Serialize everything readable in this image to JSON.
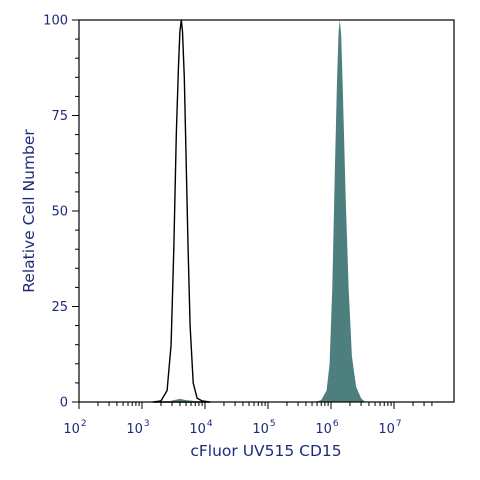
{
  "chart_data": {
    "type": "area",
    "title": "",
    "xlabel": "cFluor UV515 CD15",
    "ylabel": "Relative Cell Number",
    "x_scale": "log",
    "xlim": [
      100,
      50000000
    ],
    "ylim": [
      0,
      100
    ],
    "x_ticks": [
      {
        "base": "10",
        "exp": "2"
      },
      {
        "base": "10",
        "exp": "3"
      },
      {
        "base": "10",
        "exp": "4"
      },
      {
        "base": "10",
        "exp": "5"
      },
      {
        "base": "10",
        "exp": "6"
      },
      {
        "base": "10",
        "exp": "7"
      }
    ],
    "y_ticks": [
      "0",
      "25",
      "50",
      "75",
      "100"
    ],
    "grid": false,
    "series": [
      {
        "style": "outline",
        "color": "#000000",
        "points": [
          [
            1500,
            0
          ],
          [
            2000,
            0.3
          ],
          [
            2500,
            3
          ],
          [
            2900,
            15
          ],
          [
            3200,
            40
          ],
          [
            3500,
            70
          ],
          [
            3800,
            88
          ],
          [
            4000,
            97
          ],
          [
            4200,
            100
          ],
          [
            4400,
            97
          ],
          [
            4700,
            85
          ],
          [
            5000,
            65
          ],
          [
            5400,
            40
          ],
          [
            5800,
            20
          ],
          [
            6500,
            5
          ],
          [
            7500,
            1
          ],
          [
            9000,
            0.3
          ],
          [
            12000,
            0
          ]
        ]
      },
      {
        "style": "filled",
        "color": "#4e7f7f",
        "points": [
          [
            550000,
            0
          ],
          [
            700000,
            0.5
          ],
          [
            850000,
            3
          ],
          [
            950000,
            10
          ],
          [
            1050000,
            30
          ],
          [
            1150000,
            60
          ],
          [
            1250000,
            85
          ],
          [
            1320000,
            97
          ],
          [
            1380000,
            100
          ],
          [
            1450000,
            96
          ],
          [
            1550000,
            80
          ],
          [
            1700000,
            55
          ],
          [
            1900000,
            30
          ],
          [
            2150000,
            12
          ],
          [
            2500000,
            4
          ],
          [
            3000000,
            1
          ],
          [
            3500000,
            0
          ]
        ]
      },
      {
        "style": "filled-baseline",
        "color": "#4e7f7f",
        "points": [
          [
            2600,
            0
          ],
          [
            3000,
            0.4
          ],
          [
            4000,
            0.8
          ],
          [
            5000,
            0.5
          ],
          [
            6500,
            0.3
          ],
          [
            8000,
            0
          ]
        ]
      }
    ]
  }
}
